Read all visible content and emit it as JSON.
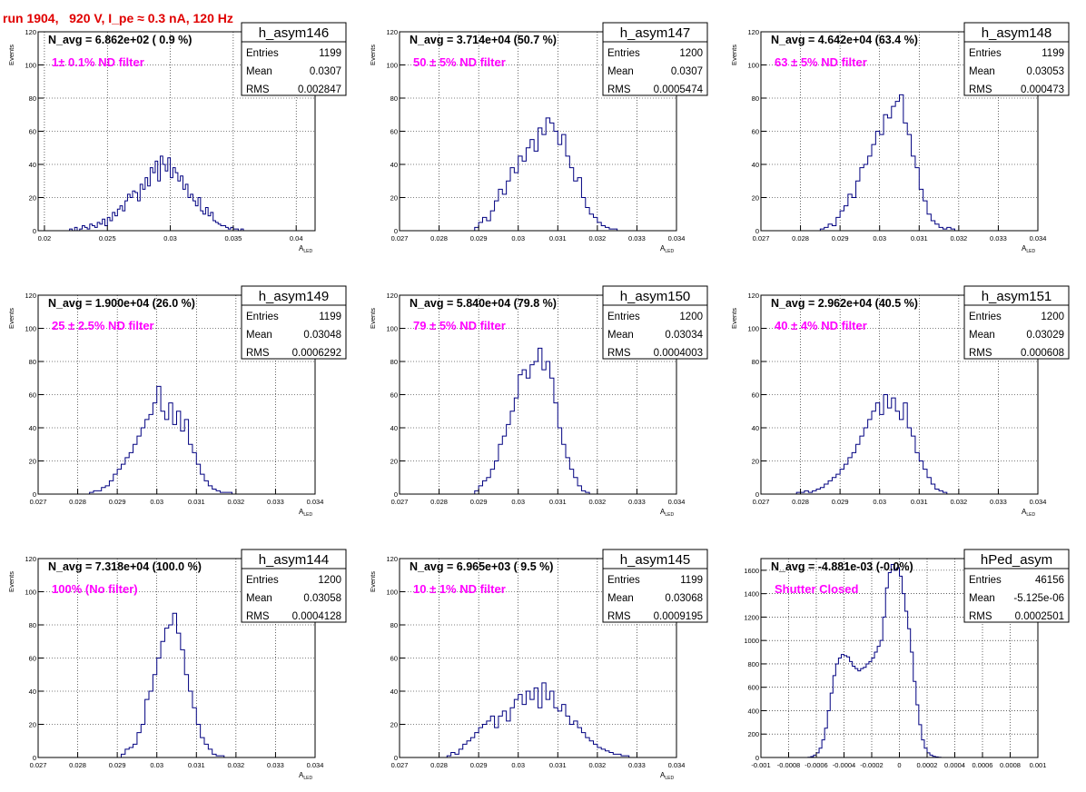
{
  "run_title": "run 1904,   920 V, I_pe ≈ 0.3 nA, 120 Hz",
  "colors": {
    "hist": "#000080",
    "annot": "#ff00ff",
    "title": "#e00000",
    "grid": "#000000"
  },
  "chart_data": [
    {
      "type": "bar",
      "name": "h_asym146",
      "navg": "N_avg = 6.862e+02 ( 0.9 %)",
      "annotation": "1± 0.1% ND filter",
      "stats": [
        [
          "Entries",
          "1199"
        ],
        [
          "Mean",
          "0.0307"
        ],
        [
          "RMS",
          "0.002847"
        ]
      ],
      "ylabel": "Events",
      "xlabel": "A",
      "xlabel_sub": "LED",
      "xlim": [
        0.0195,
        0.0415
      ],
      "ylim": [
        0,
        120
      ],
      "xticks": [
        "0.02",
        "0.025",
        "0.03",
        "0.035",
        "0.04"
      ],
      "xtick_values": [
        0.02,
        0.025,
        0.03,
        0.035,
        0.04
      ],
      "yticks": [
        "0",
        "20",
        "40",
        "60",
        "80",
        "100",
        "120"
      ],
      "bin_start": 0.022,
      "bin_width": 0.0002,
      "values": [
        1,
        0,
        2,
        0,
        1,
        3,
        2,
        1,
        4,
        3,
        2,
        5,
        4,
        7,
        3,
        8,
        6,
        11,
        9,
        13,
        15,
        12,
        18,
        22,
        20,
        24,
        23,
        18,
        28,
        25,
        32,
        27,
        38,
        35,
        42,
        30,
        45,
        40,
        36,
        44,
        32,
        38,
        35,
        30,
        33,
        25,
        28,
        20,
        22,
        18,
        15,
        20,
        12,
        10,
        14,
        9,
        11,
        6,
        5,
        4,
        3,
        3,
        2,
        1,
        2,
        1,
        1,
        0,
        1,
        0
      ]
    },
    {
      "type": "bar",
      "name": "h_asym147",
      "navg": "N_avg = 3.714e+04 (50.7 %)",
      "annotation": "50 ± 5% ND filter",
      "stats": [
        [
          "Entries",
          "1200"
        ],
        [
          "Mean",
          "0.0307"
        ],
        [
          "RMS",
          "0.0005474"
        ]
      ],
      "ylabel": "Events",
      "xlabel": "A",
      "xlabel_sub": "LED",
      "xlim": [
        0.027,
        0.034
      ],
      "ylim": [
        0,
        120
      ],
      "xticks": [
        "0.027",
        "0.028",
        "0.029",
        "0.03",
        "0.031",
        "0.032",
        "0.033",
        "0.034"
      ],
      "xtick_values": [
        0.027,
        0.028,
        0.029,
        0.03,
        0.031,
        0.032,
        0.033,
        0.034
      ],
      "yticks": [
        "0",
        "20",
        "40",
        "60",
        "80",
        "100",
        "120"
      ],
      "bin_start": 0.0289,
      "bin_width": 0.0001,
      "values": [
        2,
        5,
        8,
        6,
        12,
        18,
        25,
        22,
        30,
        38,
        35,
        45,
        42,
        50,
        55,
        48,
        62,
        58,
        68,
        65,
        60,
        52,
        58,
        45,
        38,
        30,
        32,
        20,
        14,
        10,
        8,
        5,
        3,
        2,
        1,
        1
      ]
    },
    {
      "type": "bar",
      "name": "h_asym148",
      "navg": "N_avg = 4.642e+04 (63.4 %)",
      "annotation": "63 ± 5% ND filter",
      "stats": [
        [
          "Entries",
          "1199"
        ],
        [
          "Mean",
          "0.03053"
        ],
        [
          "RMS",
          "0.000473"
        ]
      ],
      "ylabel": "Events",
      "xlabel": "A",
      "xlabel_sub": "LED",
      "xlim": [
        0.027,
        0.034
      ],
      "ylim": [
        0,
        120
      ],
      "xticks": [
        "0.027",
        "0.028",
        "0.029",
        "0.03",
        "0.031",
        "0.032",
        "0.033",
        "0.034"
      ],
      "xtick_values": [
        0.027,
        0.028,
        0.029,
        0.03,
        0.031,
        0.032,
        0.033,
        0.034
      ],
      "yticks": [
        "0",
        "20",
        "40",
        "60",
        "80",
        "100",
        "120"
      ],
      "bin_start": 0.0285,
      "bin_width": 0.0001,
      "values": [
        1,
        2,
        4,
        3,
        8,
        12,
        15,
        22,
        20,
        30,
        38,
        40,
        45,
        52,
        60,
        58,
        70,
        68,
        75,
        78,
        82,
        65,
        58,
        45,
        38,
        25,
        18,
        10,
        6,
        4,
        2,
        1,
        2,
        1
      ]
    },
    {
      "type": "bar",
      "name": "h_asym149",
      "navg": "N_avg = 1.900e+04 (26.0 %)",
      "annotation": "25 ± 2.5% ND filter",
      "stats": [
        [
          "Entries",
          "1199"
        ],
        [
          "Mean",
          "0.03048"
        ],
        [
          "RMS",
          "0.0006292"
        ]
      ],
      "ylabel": "Events",
      "xlabel": "A",
      "xlabel_sub": "LED",
      "xlim": [
        0.027,
        0.034
      ],
      "ylim": [
        0,
        120
      ],
      "xticks": [
        "0.027",
        "0.028",
        "0.029",
        "0.03",
        "0.031",
        "0.032",
        "0.033",
        "0.034"
      ],
      "xtick_values": [
        0.027,
        0.028,
        0.029,
        0.03,
        0.031,
        0.032,
        0.033,
        0.034
      ],
      "yticks": [
        "0",
        "20",
        "40",
        "60",
        "80",
        "100",
        "120"
      ],
      "bin_start": 0.0283,
      "bin_width": 0.0001,
      "values": [
        1,
        2,
        2,
        4,
        5,
        8,
        12,
        15,
        18,
        22,
        25,
        30,
        35,
        40,
        45,
        48,
        55,
        65,
        50,
        45,
        55,
        42,
        50,
        38,
        45,
        30,
        25,
        18,
        12,
        8,
        5,
        3,
        2,
        1,
        1,
        1
      ]
    },
    {
      "type": "bar",
      "name": "h_asym150",
      "navg": "N_avg = 5.840e+04 (79.8 %)",
      "annotation": "79 ± 5% ND filter",
      "stats": [
        [
          "Entries",
          "1200"
        ],
        [
          "Mean",
          "0.03034"
        ],
        [
          "RMS",
          "0.0004003"
        ]
      ],
      "ylabel": "Events",
      "xlabel": "A",
      "xlabel_sub": "LED",
      "xlim": [
        0.027,
        0.034
      ],
      "ylim": [
        0,
        120
      ],
      "xticks": [
        "0.027",
        "0.028",
        "0.029",
        "0.03",
        "0.031",
        "0.032",
        "0.033",
        "0.034"
      ],
      "xtick_values": [
        0.027,
        0.028,
        0.029,
        0.03,
        0.031,
        0.032,
        0.033,
        0.034
      ],
      "yticks": [
        "0",
        "20",
        "40",
        "60",
        "80",
        "100",
        "120"
      ],
      "bin_start": 0.0289,
      "bin_width": 0.0001,
      "values": [
        2,
        5,
        8,
        10,
        15,
        20,
        30,
        35,
        42,
        50,
        58,
        72,
        75,
        70,
        78,
        80,
        88,
        75,
        80,
        70,
        55,
        40,
        30,
        22,
        15,
        10,
        5,
        2,
        1
      ]
    },
    {
      "type": "bar",
      "name": "h_asym151",
      "navg": "N_avg = 2.962e+04 (40.5 %)",
      "annotation": "40 ± 4% ND filter",
      "stats": [
        [
          "Entries",
          "1200"
        ],
        [
          "Mean",
          "0.03029"
        ],
        [
          "RMS",
          "0.000608"
        ]
      ],
      "ylabel": "Events",
      "xlabel": "A",
      "xlabel_sub": "LED",
      "xlim": [
        0.027,
        0.034
      ],
      "ylim": [
        0,
        120
      ],
      "xticks": [
        "0.027",
        "0.028",
        "0.029",
        "0.03",
        "0.031",
        "0.032",
        "0.033",
        "0.034"
      ],
      "xtick_values": [
        0.027,
        0.028,
        0.029,
        0.03,
        0.031,
        0.032,
        0.033,
        0.034
      ],
      "yticks": [
        "0",
        "20",
        "40",
        "60",
        "80",
        "100",
        "120"
      ],
      "bin_start": 0.0279,
      "bin_width": 0.0001,
      "values": [
        1,
        1,
        2,
        1,
        2,
        3,
        4,
        6,
        8,
        10,
        12,
        15,
        18,
        22,
        25,
        30,
        35,
        40,
        45,
        50,
        55,
        48,
        60,
        52,
        58,
        50,
        45,
        55,
        40,
        35,
        25,
        20,
        15,
        10,
        6,
        3,
        2,
        1
      ]
    },
    {
      "type": "bar",
      "name": "h_asym144",
      "navg": "N_avg = 7.318e+04 (100.0 %)",
      "annotation": "100% (No filter)",
      "stats": [
        [
          "Entries",
          "1200"
        ],
        [
          "Mean",
          "0.03058"
        ],
        [
          "RMS",
          "0.0004128"
        ]
      ],
      "ylabel": "Events",
      "xlabel": "A",
      "xlabel_sub": "LED",
      "xlim": [
        0.027,
        0.034
      ],
      "ylim": [
        0,
        120
      ],
      "xticks": [
        "0.027",
        "0.028",
        "0.029",
        "0.03",
        "0.031",
        "0.032",
        "0.033",
        "0.034"
      ],
      "xtick_values": [
        0.027,
        0.028,
        0.029,
        0.03,
        0.031,
        0.032,
        0.033,
        0.034
      ],
      "yticks": [
        "0",
        "20",
        "40",
        "60",
        "80",
        "100",
        "120"
      ],
      "bin_start": 0.0291,
      "bin_width": 0.0001,
      "values": [
        2,
        5,
        6,
        8,
        15,
        20,
        35,
        40,
        50,
        60,
        70,
        78,
        80,
        87,
        75,
        65,
        50,
        40,
        30,
        20,
        12,
        8,
        5,
        2,
        1,
        1
      ]
    },
    {
      "type": "bar",
      "name": "h_asym145",
      "navg": "N_avg = 6.965e+03 ( 9.5 %)",
      "annotation": "10 ± 1% ND filter",
      "stats": [
        [
          "Entries",
          "1199"
        ],
        [
          "Mean",
          "0.03068"
        ],
        [
          "RMS",
          "0.0009195"
        ]
      ],
      "ylabel": "Events",
      "xlabel": "A",
      "xlabel_sub": "LED",
      "xlim": [
        0.027,
        0.034
      ],
      "ylim": [
        0,
        120
      ],
      "xticks": [
        "0.027",
        "0.028",
        "0.029",
        "0.03",
        "0.031",
        "0.032",
        "0.033",
        "0.034"
      ],
      "xtick_values": [
        0.027,
        0.028,
        0.029,
        0.03,
        0.031,
        0.032,
        0.033,
        0.034
      ],
      "yticks": [
        "0",
        "20",
        "40",
        "60",
        "80",
        "100",
        "120"
      ],
      "bin_start": 0.0282,
      "bin_width": 0.0001,
      "values": [
        1,
        3,
        2,
        5,
        8,
        10,
        12,
        15,
        18,
        20,
        22,
        25,
        18,
        25,
        28,
        22,
        30,
        35,
        38,
        32,
        40,
        35,
        42,
        30,
        45,
        35,
        40,
        30,
        28,
        32,
        25,
        20,
        22,
        18,
        15,
        12,
        10,
        8,
        6,
        5,
        4,
        3,
        2,
        2,
        1,
        1
      ]
    },
    {
      "type": "bar",
      "name": "hPed_asym",
      "navg": "N_avg = -4.881e-03 (-0.0%)",
      "annotation": "Shutter Closed",
      "stats": [
        [
          "Entries",
          "46156"
        ],
        [
          "Mean",
          "-5.125e-06"
        ],
        [
          "RMS",
          "0.0002501"
        ]
      ],
      "ylabel": "",
      "xlabel": "",
      "xlabel_sub": "",
      "xlim": [
        -0.001,
        0.001
      ],
      "ylim": [
        0,
        1700
      ],
      "xticks": [
        "-0.001",
        "-0.0008",
        "-0.0006",
        "-0.0004",
        "-0.0002",
        "0",
        "0.0002",
        "0.0004",
        "0.0006",
        "0.0008",
        "0.001"
      ],
      "xtick_values": [
        -0.001,
        -0.0008,
        -0.0006,
        -0.0004,
        -0.0002,
        0,
        0.0002,
        0.0004,
        0.0006,
        0.0008,
        0.001
      ],
      "yticks": [
        "0",
        "200",
        "400",
        "600",
        "800",
        "1000",
        "1200",
        "1400",
        "1600"
      ],
      "bin_start": -0.00066,
      "bin_width": 2e-05,
      "values": [
        2,
        8,
        20,
        40,
        80,
        150,
        250,
        400,
        550,
        700,
        800,
        850,
        880,
        870,
        860,
        820,
        780,
        760,
        740,
        760,
        770,
        800,
        820,
        850,
        900,
        950,
        1000,
        1200,
        1450,
        1580,
        1650,
        1600,
        1620,
        1550,
        1400,
        1250,
        1100,
        900,
        650,
        450,
        280,
        150,
        80,
        40,
        20,
        10,
        5,
        2
      ]
    }
  ]
}
